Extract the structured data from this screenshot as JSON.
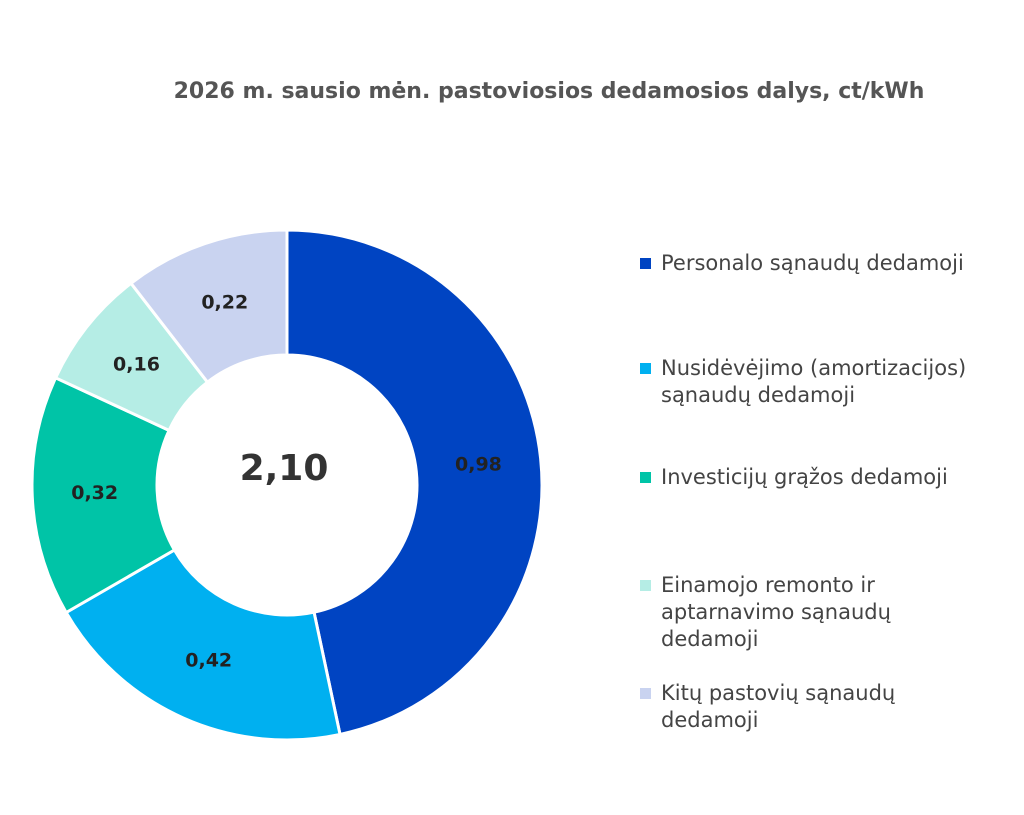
{
  "chart_data": {
    "type": "donut",
    "title": "2026 m.  sausio mėn.  pastoviosios dedamosios dalys, ct/kWh",
    "categories": [
      "Personalo sąnaudų dedamoji",
      "Nusidėvėjimo (amortizacijos) sąnaudų dedamoji",
      "Investicijų grąžos dedamoji",
      "Einamojo remonto ir aptarnavimo sąnaudų dedamoji",
      "Kitų pastovių sąnaudų dedamoji"
    ],
    "values": [
      0.98,
      0.42,
      0.32,
      0.16,
      0.22
    ],
    "value_labels": [
      "0,98",
      "0,42",
      "0,32",
      "0,16",
      "0,22"
    ],
    "colors": [
      "#0044c2",
      "#00b0f0",
      "#00c4a7",
      "#b5ede5",
      "#c9d3f0"
    ],
    "center_label": "2,10",
    "legend": "right"
  }
}
